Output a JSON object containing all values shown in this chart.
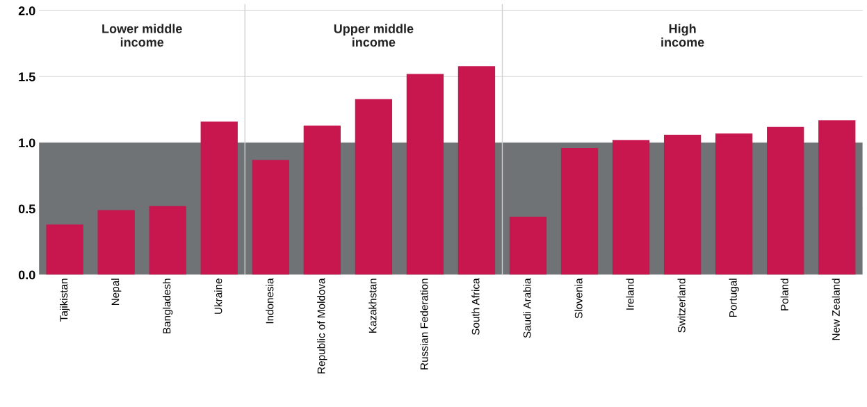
{
  "chart_data": {
    "type": "bar",
    "categories": [
      "Tajikistan",
      "Nepal",
      "Bangladesh",
      "Ukraine",
      "Indonesia",
      "Republic of Moldova",
      "Kazakhstan",
      "Russian Federation",
      "South Africa",
      "Saudi Arabia",
      "Slovenia",
      "Ireland",
      "Switzerland",
      "Portugal",
      "Poland",
      "New Zealand"
    ],
    "values": [
      0.38,
      0.49,
      0.52,
      1.16,
      0.87,
      1.13,
      1.33,
      1.52,
      1.58,
      0.44,
      0.96,
      1.02,
      1.06,
      1.07,
      1.12,
      1.17
    ],
    "color": "#c8174f",
    "ylim": [
      0,
      2.05
    ],
    "yticks": [
      {
        "value": 0,
        "label": "0.0"
      },
      {
        "value": 0.5,
        "label": "0.5"
      },
      {
        "value": 1.0,
        "label": "1.0"
      },
      {
        "value": 1.5,
        "label": "1.5"
      },
      {
        "value": 2.0,
        "label": "2.0"
      }
    ],
    "grid": "y",
    "bands": [
      {
        "axis": "y",
        "from": 0,
        "to": 1.0,
        "color": "#6f7375"
      }
    ],
    "annotations": [
      "Lower middle\nincome",
      "Upper middle\nincome",
      "High\nincome"
    ]
  }
}
